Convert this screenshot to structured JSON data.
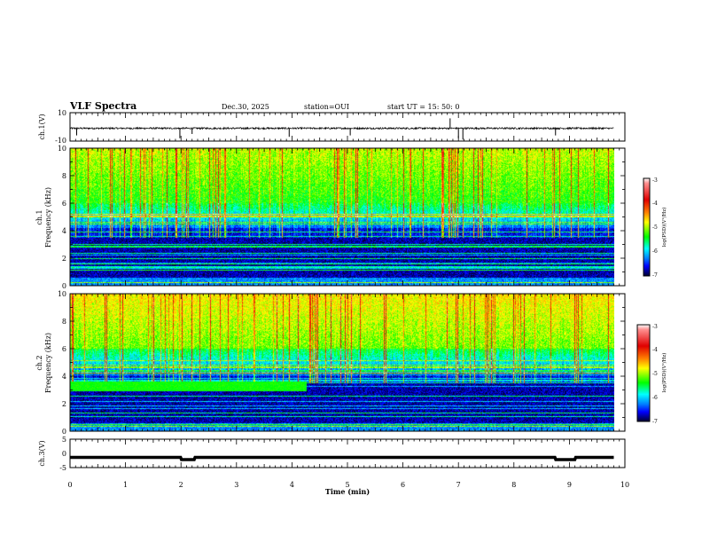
{
  "header": {
    "title": "VLF Spectra",
    "date": "Dec.30, 2025",
    "station": "station=OUI",
    "start_time": "start  UT =   15: 50: 0"
  },
  "chart_data": [
    {
      "type": "line",
      "name": "ch1-waveform",
      "ylabel": "ch.1(V)",
      "ylim": [
        -10,
        10
      ],
      "yticks": [
        "10",
        "-10"
      ],
      "baseline": -1,
      "noise_amplitude": 0.6,
      "spikes": [
        {
          "t": 0.12,
          "v": -6
        },
        {
          "t": 1.98,
          "v": -8
        },
        {
          "t": 2.2,
          "v": -5
        },
        {
          "t": 3.95,
          "v": -7
        },
        {
          "t": 5.05,
          "v": -6
        },
        {
          "t": 6.85,
          "v": 6
        },
        {
          "t": 7.0,
          "v": -8
        },
        {
          "t": 7.08,
          "v": -9
        },
        {
          "t": 8.75,
          "v": -6
        }
      ]
    },
    {
      "type": "heatmap",
      "name": "ch1-spectrogram",
      "ylabel_top": "ch.1",
      "ylabel": "Frequency (kHz)",
      "ylim": [
        0,
        10
      ],
      "yticks": [
        "0",
        "2",
        "4",
        "6",
        "8",
        "10"
      ],
      "data_end_min": 9.8,
      "colorbar": {
        "label": "log(PSD)(V²/Hz)",
        "range": [
          -7,
          -3
        ],
        "ticks": [
          "-3",
          "-4",
          "-5",
          "-6",
          "-7"
        ]
      }
    },
    {
      "type": "heatmap",
      "name": "ch2-spectrogram",
      "ylabel_top": "ch.2",
      "ylabel": "Frequency (kHz)",
      "ylim": [
        0,
        10
      ],
      "yticks": [
        "0",
        "2",
        "4",
        "6",
        "8",
        "10"
      ],
      "data_end_min": 9.8,
      "band_khz": 3.3,
      "band_end_min": 4.25,
      "colorbar": {
        "label": "log(PSD)(V²/Hz)",
        "range": [
          -7,
          -3
        ],
        "ticks": [
          "-3",
          "-4",
          "-5",
          "-6",
          "-7"
        ]
      }
    },
    {
      "type": "line",
      "name": "ch3-waveform",
      "ylabel": "ch.3(V)",
      "ylim": [
        -5,
        5
      ],
      "yticks": [
        "5",
        "0",
        "-5"
      ],
      "baseline": -1.4,
      "dips": [
        {
          "t0": 2.0,
          "t1": 2.25,
          "v": -2.2
        },
        {
          "t0": 8.75,
          "t1": 9.1,
          "v": -2.2
        }
      ]
    }
  ],
  "xaxis": {
    "label": "Time  (min)",
    "xlim": [
      0,
      10
    ],
    "ticks": [
      "0",
      "1",
      "2",
      "3",
      "4",
      "5",
      "6",
      "7",
      "8",
      "9",
      "10"
    ]
  }
}
